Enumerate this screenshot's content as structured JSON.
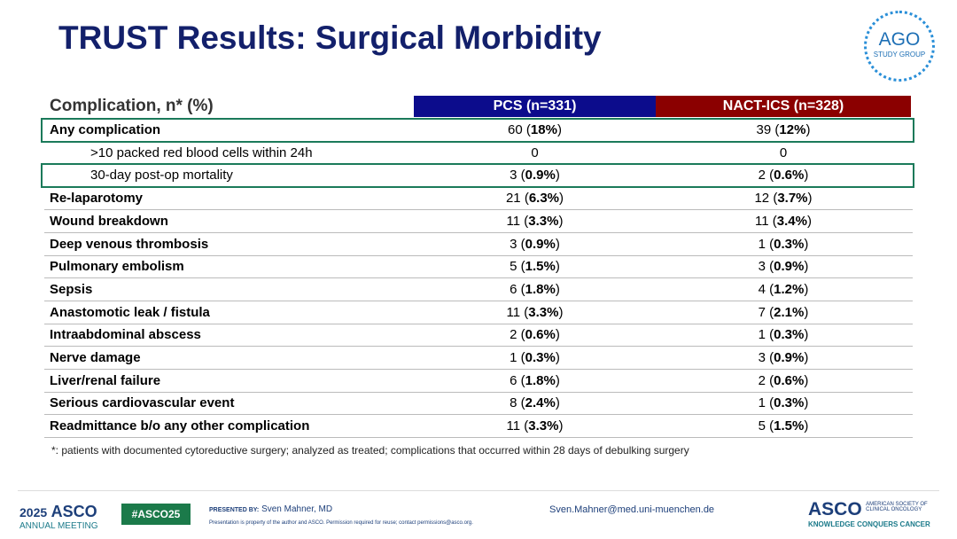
{
  "header": {
    "title": "TRUST Results: Surgical Morbidity",
    "logo_main": "AGO",
    "logo_sub": "STUDY GROUP"
  },
  "table": {
    "header": [
      "Complication, n* (%)",
      "PCS (n=331)",
      "NACT-ICS (n=328)"
    ],
    "rows": [
      {
        "label": "Any complication",
        "indent": false,
        "boxed": true,
        "pcs": {
          "n": "60",
          "pct": "18%"
        },
        "nact": {
          "n": "39",
          "pct": "12%"
        }
      },
      {
        "label": ">10 packed red blood cells within 24h",
        "indent": true,
        "boxed": false,
        "pcs": {
          "n": "0"
        },
        "nact": {
          "n": "0"
        }
      },
      {
        "label": "30-day post-op mortality",
        "indent": true,
        "boxed": true,
        "pcs": {
          "n": "3",
          "pct": "0.9%"
        },
        "nact": {
          "n": "2",
          "pct": "0.6%"
        }
      },
      {
        "label": "Re-laparotomy",
        "indent": false,
        "boxed": false,
        "pcs": {
          "n": "21",
          "pct": "6.3%"
        },
        "nact": {
          "n": "12",
          "pct": "3.7%"
        }
      },
      {
        "label": "Wound breakdown",
        "indent": false,
        "boxed": false,
        "pcs": {
          "n": "11",
          "pct": "3.3%"
        },
        "nact": {
          "n": "11",
          "pct": "3.4%"
        }
      },
      {
        "label": "Deep venous thrombosis",
        "indent": false,
        "boxed": false,
        "pcs": {
          "n": "3",
          "pct": "0.9%"
        },
        "nact": {
          "n": "1",
          "pct": "0.3%"
        }
      },
      {
        "label": "Pulmonary embolism",
        "indent": false,
        "boxed": false,
        "pcs": {
          "n": "5",
          "pct": "1.5%"
        },
        "nact": {
          "n": "3",
          "pct": "0.9%"
        }
      },
      {
        "label": "Sepsis",
        "indent": false,
        "boxed": false,
        "pcs": {
          "n": "6",
          "pct": "1.8%"
        },
        "nact": {
          "n": "4",
          "pct": "1.2%"
        }
      },
      {
        "label": "Anastomotic leak / fistula",
        "indent": false,
        "boxed": false,
        "pcs": {
          "n": "11",
          "pct": "3.3%"
        },
        "nact": {
          "n": "7",
          "pct": "2.1%"
        }
      },
      {
        "label": "Intraabdominal abscess",
        "indent": false,
        "boxed": false,
        "pcs": {
          "n": "2",
          "pct": "0.6%"
        },
        "nact": {
          "n": "1",
          "pct": "0.3%"
        }
      },
      {
        "label": "Nerve damage",
        "indent": false,
        "boxed": false,
        "pcs": {
          "n": "1",
          "pct": "0.3%"
        },
        "nact": {
          "n": "3",
          "pct": "0.9%"
        }
      },
      {
        "label": "Liver/renal failure",
        "indent": false,
        "boxed": false,
        "pcs": {
          "n": "6",
          "pct": "1.8%"
        },
        "nact": {
          "n": "2",
          "pct": "0.6%"
        }
      },
      {
        "label": "Serious cardiovascular event",
        "indent": false,
        "boxed": false,
        "pcs": {
          "n": "8",
          "pct": "2.4%"
        },
        "nact": {
          "n": "1",
          "pct": "0.3%"
        }
      },
      {
        "label": "Readmittance b/o any other complication",
        "indent": false,
        "boxed": false,
        "pcs": {
          "n": "11",
          "pct": "3.3%"
        },
        "nact": {
          "n": "5",
          "pct": "1.5%"
        }
      }
    ],
    "footnote": "*: patients with documented cytoreductive surgery; analyzed as treated; complications that occurred within 28 days of debulking surgery"
  },
  "footer": {
    "year": "2025",
    "asco": "ASCO",
    "meeting": "ANNUAL MEETING",
    "hashtag": "#ASCO25",
    "presented_by": "PRESENTED BY:",
    "presenter": "Sven Mahner, MD",
    "disclaimer": "Presentation is property of the author and ASCO. Permission required for reuse; contact permissions@asco.org.",
    "email": "Sven.Mahner@med.uni-muenchen.de",
    "logo": "ASCO",
    "society": "AMERICAN SOCIETY OF CLINICAL ONCOLOGY",
    "tagline": "KNOWLEDGE CONQUERS CANCER"
  }
}
